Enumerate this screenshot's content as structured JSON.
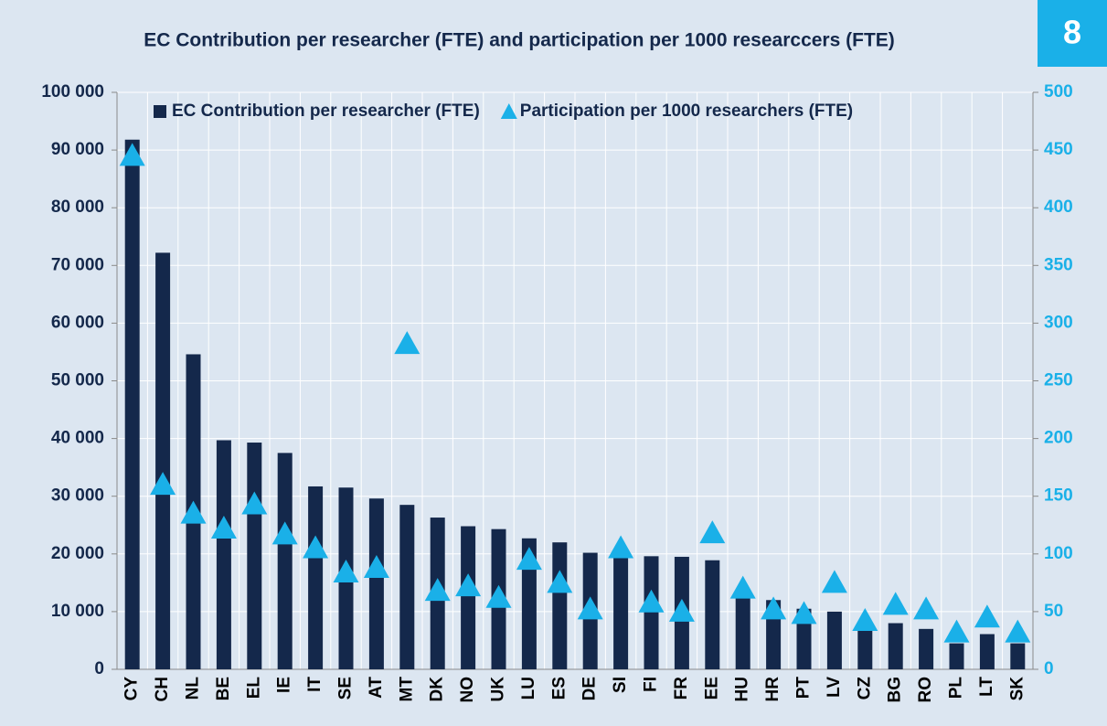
{
  "chart_data": {
    "type": "bar_line",
    "title": "EC Contribution per researcher (FTE) and participation per 1000 researccers (FTE)",
    "badge": "8",
    "categories": [
      "CY",
      "CH",
      "NL",
      "BE",
      "EL",
      "IE",
      "IT",
      "SE",
      "AT",
      "MT",
      "DK",
      "NO",
      "UK",
      "LU",
      "ES",
      "DE",
      "SI",
      "FI",
      "FR",
      "EE",
      "HU",
      "HR",
      "PT",
      "LV",
      "CZ",
      "BG",
      "RO",
      "PL",
      "LT",
      "SK"
    ],
    "series": [
      {
        "name": "EC Contribution per researcher (FTE)",
        "color": "#14284b",
        "marker": "bar",
        "axis": "y",
        "values": [
          91800,
          72200,
          54600,
          39700,
          39300,
          37500,
          31700,
          31500,
          29600,
          28500,
          26300,
          24800,
          24300,
          22700,
          22000,
          20200,
          19900,
          19600,
          19500,
          18900,
          12500,
          12000,
          10500,
          10000,
          7000,
          8000,
          7000,
          4500,
          6100,
          4500
        ]
      },
      {
        "name": "Participation per 1000 researchers (FTE)",
        "color": "#1ab0e8",
        "marker": "triangle",
        "axis": "y2",
        "values": [
          445,
          160,
          135,
          122,
          143,
          117,
          105,
          84,
          88,
          282,
          68,
          72,
          62,
          95,
          75,
          52,
          105,
          58,
          50,
          118,
          70,
          52,
          48,
          75,
          42,
          56,
          52,
          32,
          45,
          32
        ]
      }
    ],
    "ylim": [
      0,
      100000
    ],
    "yticks": [
      {
        "value": 0,
        "label": "0"
      },
      {
        "value": 10000,
        "label": "10 000"
      },
      {
        "value": 20000,
        "label": "20 000"
      },
      {
        "value": 30000,
        "label": "30 000"
      },
      {
        "value": 40000,
        "label": "40 000"
      },
      {
        "value": 50000,
        "label": "50 000"
      },
      {
        "value": 60000,
        "label": "60 000"
      },
      {
        "value": 70000,
        "label": "70 000"
      },
      {
        "value": 80000,
        "label": "80 000"
      },
      {
        "value": 90000,
        "label": "90 000"
      },
      {
        "value": 100000,
        "label": "100 000"
      }
    ],
    "y2lim": [
      0,
      500
    ],
    "y2ticks": [
      0,
      50,
      100,
      150,
      200,
      250,
      300,
      350,
      400,
      450,
      500
    ],
    "grid": true,
    "legend": "top"
  }
}
